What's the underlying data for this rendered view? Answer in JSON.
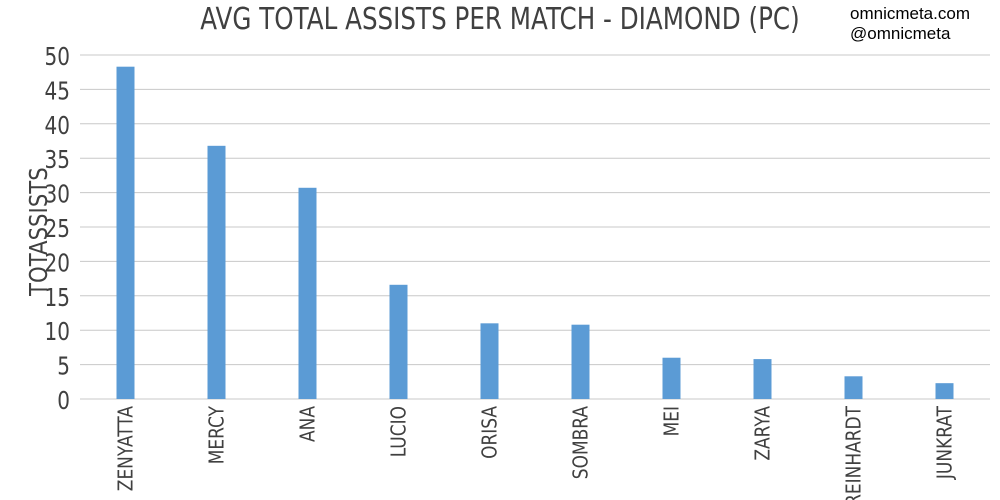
{
  "credits": {
    "site": "omnicmeta.com",
    "handle": "@omnicmeta"
  },
  "chart_data": {
    "type": "bar",
    "title": "AVG TOTAL ASSISTS PER MATCH - DIAMOND (PC)",
    "xlabel": "",
    "ylabel": "TOTASSISTS",
    "categories": [
      "ZENYATTA",
      "MERCY",
      "ANA",
      "LUCIO",
      "ORISA",
      "SOMBRA",
      "MEI",
      "ZARYA",
      "REINHARDT",
      "JUNKRAT"
    ],
    "values": [
      48.3,
      36.8,
      30.7,
      16.6,
      11.0,
      10.8,
      6.0,
      5.8,
      3.3,
      2.3
    ],
    "ylim": [
      0,
      50
    ],
    "yticks": [
      0,
      5,
      10,
      15,
      20,
      25,
      30,
      35,
      40,
      45,
      50
    ],
    "grid": true,
    "bar_color": "#5b9bd5",
    "grid_color": "#c8c8c8",
    "text_color": "#404040"
  }
}
